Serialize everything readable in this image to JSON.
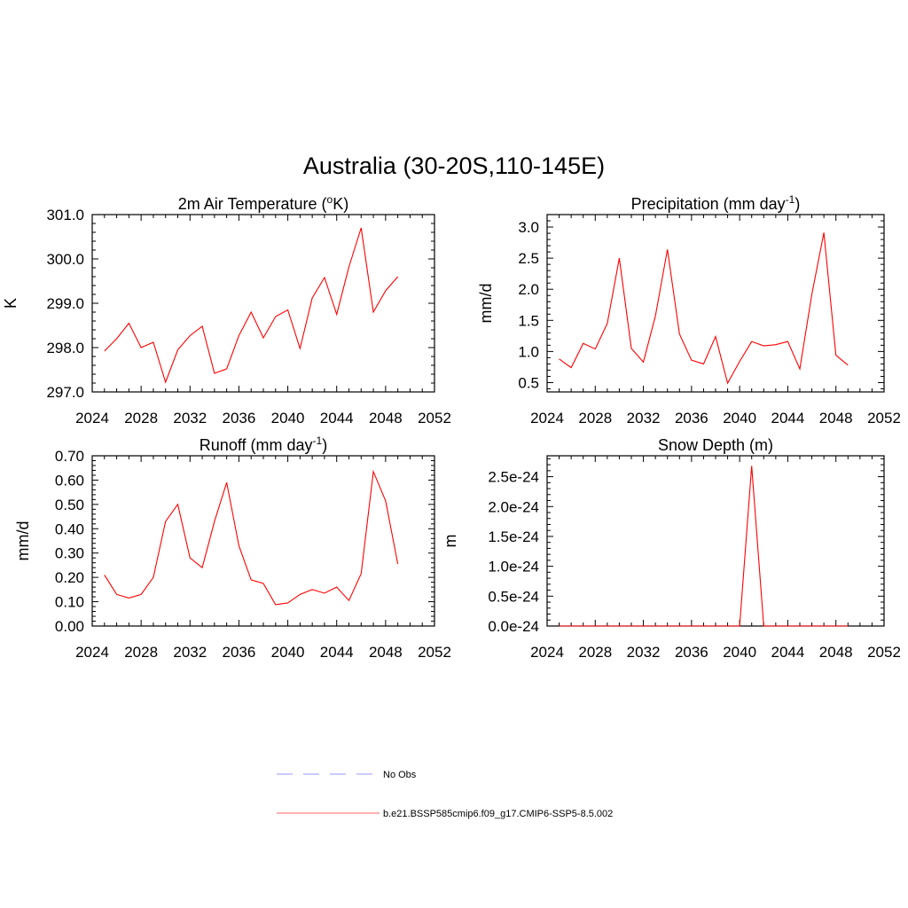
{
  "title": "Australia (30-20S,110-145E)",
  "chart_data": [
    {
      "type": "line",
      "title": "2m Air Temperature (°K)",
      "title_parts": [
        "2m Air Temperature (",
        "o",
        "K)"
      ],
      "title_sup_index": 1,
      "ylabel": "K",
      "xlim": [
        2024,
        2052
      ],
      "ylim": [
        297.0,
        301.0
      ],
      "xticks": [
        2024,
        2028,
        2032,
        2036,
        2040,
        2044,
        2048,
        2052
      ],
      "xtick_labels": [
        "2024",
        "2028",
        "2032",
        "2036",
        "2040",
        "2044",
        "2048",
        "2052"
      ],
      "yticks": [
        297.0,
        298.0,
        299.0,
        300.0,
        301.0
      ],
      "ytick_labels": [
        "297.0",
        "298.0",
        "299.0",
        "300.0",
        "301.0"
      ],
      "series": [
        {
          "name": "b.e21.BSSP585cmip6.f09_g17.CMIP6-SSP5-8.5.002",
          "color": "#ff0000",
          "x": [
            2025,
            2026,
            2027,
            2028,
            2029,
            2030,
            2031,
            2032,
            2033,
            2034,
            2035,
            2036,
            2037,
            2038,
            2039,
            2040,
            2041,
            2042,
            2043,
            2044,
            2045,
            2046,
            2047,
            2048,
            2049
          ],
          "y": [
            297.92,
            298.2,
            298.55,
            298.0,
            298.12,
            297.22,
            297.95,
            298.27,
            298.48,
            297.42,
            297.52,
            298.27,
            298.8,
            298.22,
            298.7,
            298.85,
            297.98,
            299.12,
            299.58,
            298.75,
            299.82,
            300.7,
            298.8,
            299.28,
            299.6
          ]
        }
      ]
    },
    {
      "type": "line",
      "title": "Precipitation (mm day-1)",
      "title_parts": [
        "Precipitation (mm day",
        "-1",
        ")"
      ],
      "title_sup_index": 1,
      "ylabel": "mm/d",
      "xlim": [
        2024,
        2052
      ],
      "ylim": [
        0.35,
        3.2
      ],
      "xticks": [
        2024,
        2028,
        2032,
        2036,
        2040,
        2044,
        2048,
        2052
      ],
      "xtick_labels": [
        "2024",
        "2028",
        "2032",
        "2036",
        "2040",
        "2044",
        "2048",
        "2052"
      ],
      "yticks": [
        0.5,
        1.0,
        1.5,
        2.0,
        2.5,
        3.0
      ],
      "ytick_labels": [
        "0.5",
        "1.0",
        "1.5",
        "2.0",
        "2.5",
        "3.0"
      ],
      "series": [
        {
          "name": "b.e21.BSSP585cmip6.f09_g17.CMIP6-SSP5-8.5.002",
          "color": "#ff0000",
          "x": [
            2025,
            2026,
            2027,
            2028,
            2029,
            2030,
            2031,
            2032,
            2033,
            2034,
            2035,
            2036,
            2037,
            2038,
            2039,
            2040,
            2041,
            2042,
            2043,
            2044,
            2045,
            2046,
            2047,
            2048,
            2049
          ],
          "y": [
            0.88,
            0.74,
            1.13,
            1.04,
            1.45,
            2.5,
            1.05,
            0.83,
            1.57,
            2.64,
            1.28,
            0.86,
            0.8,
            1.24,
            0.49,
            0.84,
            1.16,
            1.09,
            1.11,
            1.16,
            0.72,
            1.92,
            2.91,
            0.94,
            0.78
          ]
        }
      ]
    },
    {
      "type": "line",
      "title": "Runoff (mm day-1)",
      "title_parts": [
        "Runoff (mm day",
        "-1",
        ")"
      ],
      "title_sup_index": 1,
      "ylabel": "mm/d",
      "xlim": [
        2024,
        2052
      ],
      "ylim": [
        0.0,
        0.7
      ],
      "xticks": [
        2024,
        2028,
        2032,
        2036,
        2040,
        2044,
        2048,
        2052
      ],
      "xtick_labels": [
        "2024",
        "2028",
        "2032",
        "2036",
        "2040",
        "2044",
        "2048",
        "2052"
      ],
      "yticks": [
        0.0,
        0.1,
        0.2,
        0.3,
        0.4,
        0.5,
        0.6,
        0.7
      ],
      "ytick_labels": [
        "0.00",
        "0.10",
        "0.20",
        "0.30",
        "0.40",
        "0.50",
        "0.60",
        "0.70"
      ],
      "series": [
        {
          "name": "b.e21.BSSP585cmip6.f09_g17.CMIP6-SSP5-8.5.002",
          "color": "#ff0000",
          "x": [
            2025,
            2026,
            2027,
            2028,
            2029,
            2030,
            2031,
            2032,
            2033,
            2034,
            2035,
            2036,
            2037,
            2038,
            2039,
            2040,
            2041,
            2042,
            2043,
            2044,
            2045,
            2046,
            2047,
            2048,
            2049
          ],
          "y": [
            0.21,
            0.13,
            0.115,
            0.13,
            0.2,
            0.43,
            0.5,
            0.28,
            0.24,
            0.43,
            0.59,
            0.33,
            0.19,
            0.175,
            0.088,
            0.095,
            0.13,
            0.15,
            0.135,
            0.16,
            0.105,
            0.215,
            0.635,
            0.515,
            0.255
          ]
        }
      ]
    },
    {
      "type": "line",
      "title": "Snow Depth (m)",
      "title_parts": [
        "Snow Depth (m)"
      ],
      "title_sup_index": -1,
      "ylabel": "m",
      "xlim": [
        2024,
        2052
      ],
      "ylim": [
        0.0,
        2.85e-24
      ],
      "xticks": [
        2024,
        2028,
        2032,
        2036,
        2040,
        2044,
        2048,
        2052
      ],
      "xtick_labels": [
        "2024",
        "2028",
        "2032",
        "2036",
        "2040",
        "2044",
        "2048",
        "2052"
      ],
      "yticks": [
        0.0,
        5e-25,
        1e-24,
        1.5e-24,
        2e-24,
        2.5e-24
      ],
      "ytick_labels": [
        "0.0e-24",
        "0.5e-24",
        "1.0e-24",
        "1.5e-24",
        "2.0e-24",
        "2.5e-24"
      ],
      "series": [
        {
          "name": "b.e21.BSSP585cmip6.f09_g17.CMIP6-SSP5-8.5.002",
          "color": "#ff0000",
          "x": [
            2025,
            2026,
            2027,
            2028,
            2029,
            2030,
            2031,
            2032,
            2033,
            2034,
            2035,
            2036,
            2037,
            2038,
            2039,
            2040,
            2041,
            2042,
            2043,
            2044,
            2045,
            2046,
            2047,
            2048,
            2049
          ],
          "y": [
            0,
            0,
            0,
            0,
            0,
            0,
            0,
            0,
            0,
            0,
            0,
            0,
            0,
            0,
            0,
            0,
            2.68e-24,
            0,
            0,
            0,
            0,
            0,
            0,
            0,
            0
          ]
        }
      ]
    }
  ],
  "legend": [
    {
      "label": "No Obs",
      "color": "#aaaaff",
      "style": "dashed"
    },
    {
      "label": "b.e21.BSSP585cmip6.f09_g17.CMIP6-SSP5-8.5.002",
      "color": "#ff8080",
      "style": "solid"
    }
  ]
}
